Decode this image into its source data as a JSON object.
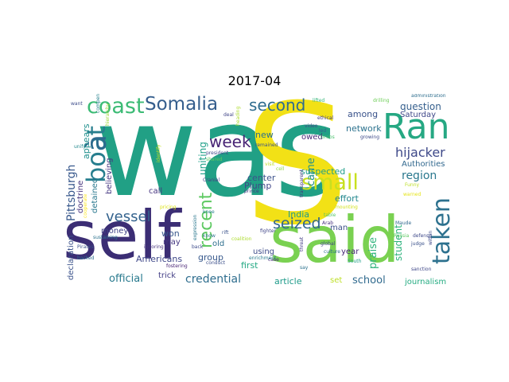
{
  "title": "2017-04",
  "words": [
    {
      "text": "was",
      "color": "#21a085"
    },
    {
      "text": "S",
      "color": "#f2e116"
    },
    {
      "text": "self",
      "color": "#3b2d74"
    },
    {
      "text": "said",
      "color": "#7ad151"
    },
    {
      "text": "Ran",
      "color": "#26a883"
    },
    {
      "text": "boat",
      "color": "#277e8e"
    },
    {
      "text": "à",
      "color": "#2c6a8e"
    },
    {
      "text": "coast",
      "color": "#3cbb75"
    },
    {
      "text": "Somalia",
      "color": "#355e8d"
    },
    {
      "text": "second",
      "color": "#2f6c8e"
    },
    {
      "text": "small",
      "color": "#c8e020"
    },
    {
      "text": "taken",
      "color": "#2d718e"
    },
    {
      "text": "week",
      "color": "#482475"
    },
    {
      "text": "recent",
      "color": "#5ec962"
    },
    {
      "text": "seized",
      "color": "#31668e"
    },
    {
      "text": "vessel",
      "color": "#33628d"
    },
    {
      "text": "hijacker",
      "color": "#3e4989"
    },
    {
      "text": "region",
      "color": "#2a788e"
    },
    {
      "text": "question",
      "color": "#355f8d"
    },
    {
      "text": "Saturday",
      "color": "#3f4889"
    },
    {
      "text": "Authorities",
      "color": "#31688e"
    },
    {
      "text": "network",
      "color": "#2c728e"
    },
    {
      "text": "among",
      "color": "#3a538b"
    },
    {
      "text": "came",
      "color": "#218f8d"
    },
    {
      "text": "suspected",
      "color": "#1f9e89"
    },
    {
      "text": "effort",
      "color": "#23888e"
    },
    {
      "text": "Pittsburgh",
      "color": "#38588c"
    },
    {
      "text": "appears",
      "color": "#21908d"
    },
    {
      "text": "doctrine",
      "color": "#46337e"
    },
    {
      "text": "detained",
      "color": "#2a788e"
    },
    {
      "text": "believing",
      "color": "#453781"
    },
    {
      "text": "uniting",
      "color": "#1fa088"
    },
    {
      "text": "new",
      "color": "#2c718e"
    },
    {
      "text": "owed",
      "color": "#482878"
    },
    {
      "text": "center",
      "color": "#3b528b"
    },
    {
      "text": "Plump",
      "color": "#404688"
    },
    {
      "text": "call",
      "color": "#463480"
    },
    {
      "text": "money",
      "color": "#414487"
    },
    {
      "text": "won",
      "color": "#38588c"
    },
    {
      "text": "old",
      "color": "#2e6f8e"
    },
    {
      "text": "may",
      "color": "#453882"
    },
    {
      "text": "India",
      "color": "#1f9a8a"
    },
    {
      "text": "man",
      "color": "#3c4f8a"
    },
    {
      "text": "praise",
      "color": "#2fb47c"
    },
    {
      "text": "student",
      "color": "#2db27d"
    },
    {
      "text": "year",
      "color": "#482777"
    },
    {
      "text": "using",
      "color": "#3e4c8a"
    },
    {
      "text": "first",
      "color": "#23a983"
    },
    {
      "text": "group",
      "color": "#38598c"
    },
    {
      "text": "Americans",
      "color": "#3f4889"
    },
    {
      "text": "declaration",
      "color": "#3b528b"
    },
    {
      "text": "official",
      "color": "#297a8e"
    },
    {
      "text": "trick",
      "color": "#433e85"
    },
    {
      "text": "credential",
      "color": "#2e6d8e"
    },
    {
      "text": "article",
      "color": "#1e9b8a"
    },
    {
      "text": "set",
      "color": "#bddf26"
    },
    {
      "text": "school",
      "color": "#306a8e"
    },
    {
      "text": "journalism",
      "color": "#25ac82"
    },
    {
      "text": "administration",
      "color": "#2e6e8e"
    },
    {
      "text": "lifted",
      "color": "#35b779"
    },
    {
      "text": "ethical",
      "color": "#443983"
    },
    {
      "text": "video",
      "color": "#3e4a89"
    },
    {
      "text": "led",
      "color": "#355f8d"
    },
    {
      "text": "Arab",
      "color": "#46307e"
    },
    {
      "text": "Grabs",
      "color": "#4ac16d"
    },
    {
      "text": "growing",
      "color": "#3e4a89"
    },
    {
      "text": "global",
      "color": "#414487"
    },
    {
      "text": "table",
      "color": "#54c568"
    },
    {
      "text": "culture",
      "color": "#2e6f8e"
    },
    {
      "text": "defense",
      "color": "#3e4989"
    },
    {
      "text": "Funny",
      "color": "#bddf26"
    },
    {
      "text": "judge",
      "color": "#3b528b"
    },
    {
      "text": "Maude",
      "color": "#31688e"
    },
    {
      "text": "Russia",
      "color": "#5ec962"
    },
    {
      "text": "sanction",
      "color": "#3f4788"
    },
    {
      "text": "South",
      "color": "#1f9e89"
    },
    {
      "text": "threat",
      "color": "#433d84"
    },
    {
      "text": "say",
      "color": "#2c718e"
    },
    {
      "text": "case",
      "color": "#472f7d"
    },
    {
      "text": "fighter",
      "color": "#404588"
    },
    {
      "text": "prince",
      "color": "#443983"
    },
    {
      "text": "remained",
      "color": "#3b528b"
    },
    {
      "text": "knee",
      "color": "#277f8e"
    },
    {
      "text": "back",
      "color": "#3e4c8a"
    },
    {
      "text": "expression",
      "color": "#2a778e"
    },
    {
      "text": "conduct",
      "color": "#3c4f8a"
    },
    {
      "text": "ignoring",
      "color": "#46337e"
    },
    {
      "text": "fostering",
      "color": "#482475"
    },
    {
      "text": "enrichment",
      "color": "#287c8e"
    },
    {
      "text": "rift",
      "color": "#3b528b"
    },
    {
      "text": "know",
      "color": "#2d708e"
    },
    {
      "text": "Cranial",
      "color": "#433e85"
    },
    {
      "text": "shared",
      "color": "#5ec962"
    },
    {
      "text": "president",
      "color": "#3f4889"
    },
    {
      "text": "deal",
      "color": "#404688"
    },
    {
      "text": "Pirates",
      "color": "#3b528b"
    },
    {
      "text": "backed",
      "color": "#2e6e8e"
    },
    {
      "text": "want",
      "color": "#3d4d8a"
    },
    {
      "text": "sustaining",
      "color": "#2c728e"
    },
    {
      "text": "compensate",
      "color": "#26828e"
    },
    {
      "text": "unify",
      "color": "#23898e"
    },
    {
      "text": "transparent",
      "color": "#453781"
    },
    {
      "text": "within",
      "color": "#3e4989"
    },
    {
      "text": "drilling",
      "color": "#6ece58"
    },
    {
      "text": "cell",
      "color": "#8fd744"
    },
    {
      "text": "visit",
      "color": "#bddf26"
    },
    {
      "text": "heading",
      "color": "#addc30"
    },
    {
      "text": "hierarchy",
      "color": "#9fda3a"
    },
    {
      "text": "pricing",
      "color": "#dde318"
    },
    {
      "text": "identify",
      "color": "#c2df23"
    },
    {
      "text": "cooperate",
      "color": "#fde725"
    },
    {
      "text": "mounting",
      "color": "#d2e21b"
    },
    {
      "text": "warned",
      "color": "#e5e419"
    },
    {
      "text": "coalition",
      "color": "#addc30"
    }
  ]
}
